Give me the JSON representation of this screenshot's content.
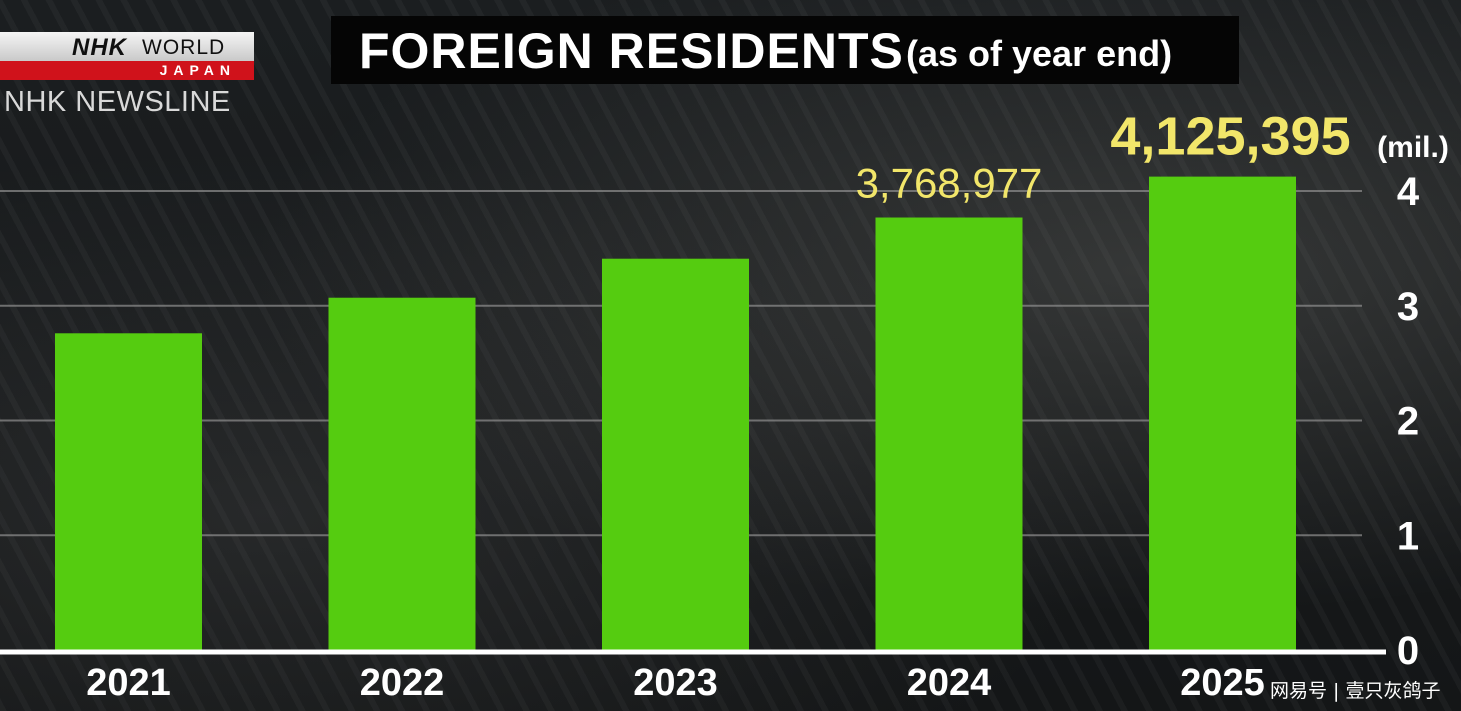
{
  "broadcast": {
    "logo_nhk": "NHK",
    "logo_world": "WORLD",
    "logo_japan": "JAPAN",
    "program": "NHK NEWSLINE"
  },
  "title": {
    "main": "FOREIGN RESIDENTS",
    "sub": "(as of year end)"
  },
  "watermark": "网易号 | 壹只灰鸽子",
  "colors": {
    "bar": "#55cc10",
    "data_label": "#f2e66a",
    "gridline": "#8a8a8a",
    "baseline": "#ffffff",
    "text": "#ffffff"
  },
  "chart_data": {
    "type": "bar",
    "title": "FOREIGN RESIDENTS (as of year end)",
    "categories": [
      "2021",
      "2022",
      "2023",
      "2024",
      "2025"
    ],
    "values": [
      2.76,
      3.07,
      3.41,
      3.768977,
      4.125395
    ],
    "data_labels": [
      "",
      "",
      "",
      "3,768,977",
      "4,125,395"
    ],
    "unit_label": "(mil.)",
    "y_ticks": [
      "0",
      "1",
      "2",
      "3",
      "4"
    ],
    "ylim": [
      0,
      4
    ],
    "grid": true,
    "y_axis_side": "right"
  }
}
